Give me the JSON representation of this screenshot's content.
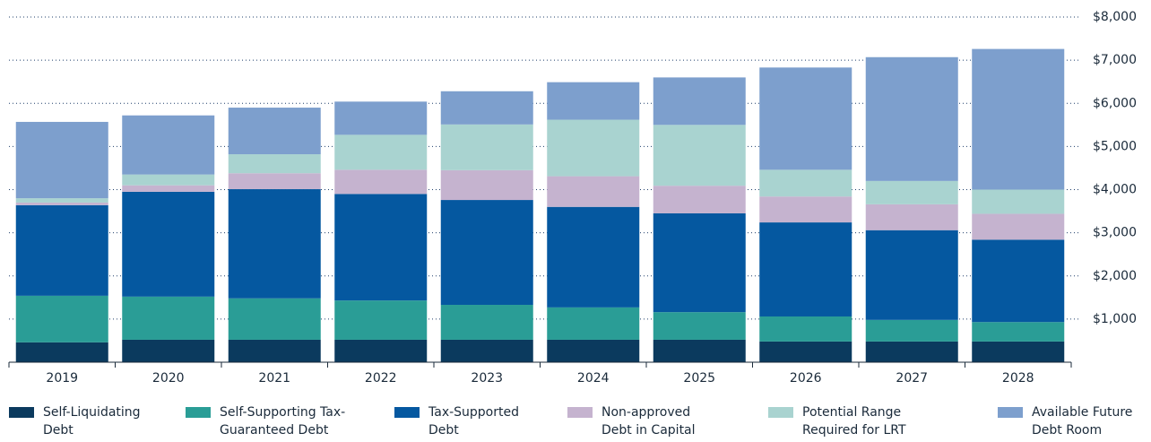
{
  "chart_data": {
    "type": "stacked-bar",
    "categories": [
      "2019",
      "2020",
      "2021",
      "2022",
      "2023",
      "2024",
      "2025",
      "2026",
      "2027",
      "2028"
    ],
    "series": [
      {
        "name": "Self-Liquidating Debt",
        "color": "#0b3a5e",
        "values": [
          460,
          520,
          520,
          520,
          520,
          520,
          520,
          480,
          480,
          480
        ]
      },
      {
        "name": "Self-Supporting Tax-Guaranteed Debt",
        "color": "#2a9d96",
        "values": [
          1080,
          1000,
          960,
          910,
          810,
          750,
          640,
          580,
          500,
          450
        ]
      },
      {
        "name": "Tax-Supported Debt",
        "color": "#0558a0",
        "values": [
          2100,
          2430,
          2530,
          2470,
          2430,
          2330,
          2290,
          2180,
          2080,
          1910
        ]
      },
      {
        "name": "Non-approved Debt in Capital Budget",
        "color": "#c5b3cf",
        "values": [
          60,
          150,
          370,
          560,
          690,
          710,
          640,
          600,
          600,
          600
        ]
      },
      {
        "name": "Potential Range Required for LRT Expansion",
        "color": "#a9d3d0",
        "values": [
          100,
          250,
          440,
          810,
          1060,
          1310,
          1410,
          620,
          540,
          560
        ]
      },
      {
        "name": "Available Future Debt Room",
        "color": "#7d9fcd",
        "values": [
          1770,
          1370,
          1080,
          770,
          770,
          870,
          1100,
          2370,
          2870,
          3260
        ]
      }
    ],
    "ylim": [
      0,
      8000
    ],
    "yticks": [
      {
        "value": 1000,
        "label": "$1,000"
      },
      {
        "value": 2000,
        "label": "$2,000"
      },
      {
        "value": 3000,
        "label": "$3,000"
      },
      {
        "value": 4000,
        "label": "$4,000"
      },
      {
        "value": 5000,
        "label": "$5,000"
      },
      {
        "value": 6000,
        "label": "$6,000"
      },
      {
        "value": 7000,
        "label": "$7,000"
      },
      {
        "value": 8000,
        "label": "$8,000"
      }
    ],
    "grid": true
  }
}
